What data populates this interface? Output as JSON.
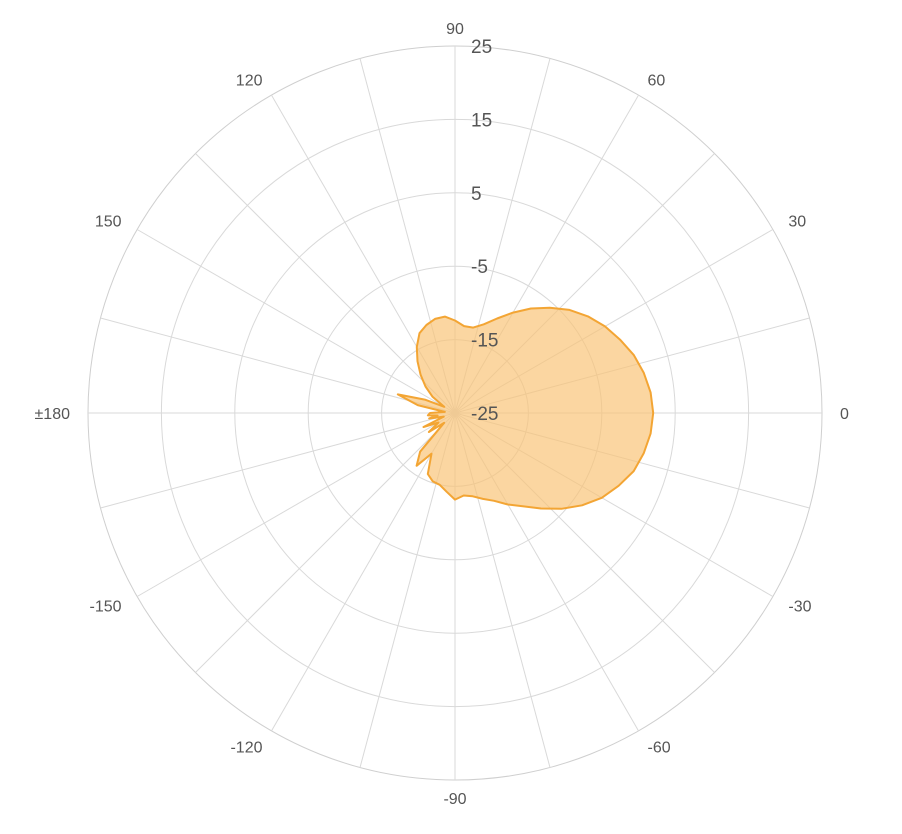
{
  "chart_data": {
    "type": "area",
    "coordinate_system": "polar",
    "angle_axis": {
      "ticks": [
        0,
        30,
        60,
        90,
        120,
        150,
        180,
        -150,
        -120,
        -90,
        -60,
        -30
      ],
      "tick_labels": [
        "0",
        "30",
        "60",
        "90",
        "120",
        "150",
        "±180",
        "-150",
        "-120",
        "-90",
        "-60",
        "-30"
      ],
      "direction": "counterclockwise",
      "zero_at": "right",
      "minor_spokes_every": 15
    },
    "radial_axis": {
      "range": [
        -25,
        25
      ],
      "ticks": [
        -25,
        -15,
        -5,
        5,
        15,
        25
      ],
      "tick_labels": [
        "-25",
        "-15",
        "-5",
        "5",
        "15",
        "25"
      ],
      "label_angle": 90
    },
    "grid": true,
    "legend": "none",
    "series": [
      {
        "color": "#f3a534",
        "fill": "#f9c274",
        "fill_opacity": 0.68,
        "points": [
          {
            "angle": -180,
            "value": -21.6
          },
          {
            "angle": -175,
            "value": -21.3
          },
          {
            "angle": -172,
            "value": -22.6
          },
          {
            "angle": -168,
            "value": -21.4
          },
          {
            "angle": -162,
            "value": -23.4
          },
          {
            "angle": -156,
            "value": -20.3
          },
          {
            "angle": -150,
            "value": -22.4
          },
          {
            "angle": -144,
            "value": -20.6
          },
          {
            "angle": -138,
            "value": -23.0
          },
          {
            "angle": -132,
            "value": -17.9
          },
          {
            "angle": -126,
            "value": -16.1
          },
          {
            "angle": -120,
            "value": -18.6
          },
          {
            "angle": -114,
            "value": -15.9
          },
          {
            "angle": -108,
            "value": -15.2
          },
          {
            "angle": -102,
            "value": -15.0
          },
          {
            "angle": -96,
            "value": -14.2
          },
          {
            "angle": -90,
            "value": -13.2
          },
          {
            "angle": -84,
            "value": -13.7
          },
          {
            "angle": -78,
            "value": -13.4
          },
          {
            "angle": -72,
            "value": -12.7
          },
          {
            "angle": -66,
            "value": -11.9
          },
          {
            "angle": -60,
            "value": -10.6
          },
          {
            "angle": -54,
            "value": -9.3
          },
          {
            "angle": -48,
            "value": -7.5
          },
          {
            "angle": -42,
            "value": -5.5
          },
          {
            "angle": -36,
            "value": -3.6
          },
          {
            "angle": -30,
            "value": -1.9
          },
          {
            "angle": -24,
            "value": -0.6
          },
          {
            "angle": -18,
            "value": 0.6
          },
          {
            "angle": -12,
            "value": 1.3
          },
          {
            "angle": -6,
            "value": 1.8
          },
          {
            "angle": 0,
            "value": 2.0
          },
          {
            "angle": 6,
            "value": 1.8
          },
          {
            "angle": 12,
            "value": 1.3
          },
          {
            "angle": 18,
            "value": 0.6
          },
          {
            "angle": 24,
            "value": -0.4
          },
          {
            "angle": 30,
            "value": -1.4
          },
          {
            "angle": 36,
            "value": -2.6
          },
          {
            "angle": 42,
            "value": -4.0
          },
          {
            "angle": 48,
            "value": -5.7
          },
          {
            "angle": 54,
            "value": -7.4
          },
          {
            "angle": 60,
            "value": -9.2
          },
          {
            "angle": 66,
            "value": -10.9
          },
          {
            "angle": 72,
            "value": -12.3
          },
          {
            "angle": 78,
            "value": -13.1
          },
          {
            "angle": 84,
            "value": -13.1
          },
          {
            "angle": 90,
            "value": -12.4
          },
          {
            "angle": 96,
            "value": -11.8
          },
          {
            "angle": 102,
            "value": -11.9
          },
          {
            "angle": 108,
            "value": -12.4
          },
          {
            "angle": 114,
            "value": -13.1
          },
          {
            "angle": 120,
            "value": -14.6
          },
          {
            "angle": 126,
            "value": -16.3
          },
          {
            "angle": 132,
            "value": -18.0
          },
          {
            "angle": 138,
            "value": -19.6
          },
          {
            "angle": 144,
            "value": -21.2
          },
          {
            "angle": 150,
            "value": -23.3
          },
          {
            "angle": 156,
            "value": -20.5
          },
          {
            "angle": 162,
            "value": -16.8
          },
          {
            "angle": 168,
            "value": -19.8
          },
          {
            "angle": 174,
            "value": -23.6
          }
        ]
      }
    ]
  }
}
